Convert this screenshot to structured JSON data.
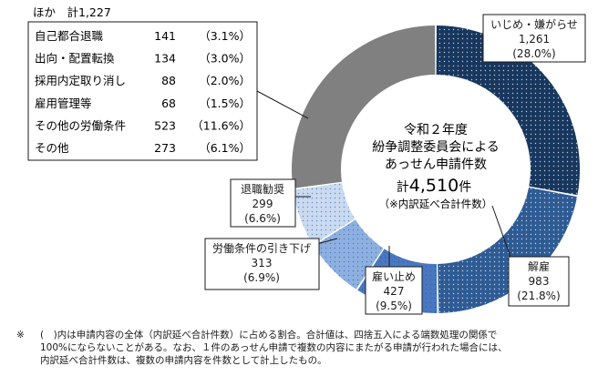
{
  "chart_data": {
    "type": "pie",
    "variant": "donut",
    "center_text": {
      "line1": "令和２年度",
      "line2": "紛争調整委員会による",
      "line3": "あっせん申請件数",
      "total_prefix": "計",
      "total_value": "4,510",
      "total_suffix": "件",
      "note": "（※内訳延べ合計件数）"
    },
    "slices": [
      {
        "name": "いじめ・嫌がらせ",
        "value": 1261,
        "value_label": "1,261",
        "percent_label": "(28.0%)",
        "color": "#17375e",
        "pattern": "dots-white"
      },
      {
        "name": "解雇",
        "value": 983,
        "value_label": "983",
        "percent_label": "(21.8%)",
        "color": "#2e5b94",
        "pattern": "dots-white"
      },
      {
        "name": "雇い止め",
        "value": 427,
        "value_label": "427",
        "percent_label": "(9.5%)",
        "color": "#4a78c0",
        "pattern": "dots-blue"
      },
      {
        "name": "労働条件の引き下げ",
        "value": 313,
        "value_label": "313",
        "percent_label": "(6.9%)",
        "color": "#8eb0e0",
        "pattern": "dots-blue"
      },
      {
        "name": "退職勧奨",
        "value": 299,
        "value_label": "299",
        "percent_label": "(6.6%)",
        "color": "#c9daf1",
        "pattern": "dots-blue"
      },
      {
        "name": "ほか",
        "value": 1227,
        "value_label": "1,227",
        "percent_label": "",
        "color": "#808080",
        "pattern": "solid"
      }
    ],
    "other_breakdown": {
      "title": "ほか　計1,227",
      "rows": [
        {
          "name": "自己都合退職",
          "value": "141",
          "percent": "（3.1%）"
        },
        {
          "name": "出向・配置転換",
          "value": "134",
          "percent": "（3.0%）"
        },
        {
          "name": "採用内定取り消し",
          "value": "88",
          "percent": "（2.0%）"
        },
        {
          "name": "雇用管理等",
          "value": "68",
          "percent": "（1.5%）"
        },
        {
          "name": "その他の労働条件",
          "value": "523",
          "percent": "（11.6%）"
        },
        {
          "name": "その他",
          "value": "273",
          "percent": "（6.1%）"
        }
      ]
    }
  },
  "footnote": {
    "mark": "※",
    "text": "(　)内は申請内容の全体（内訳延べ合計件数）に占める割合。合計値は、四捨五入による端数処理の関係で\n100%にならないことがある。なお、１件のあっせん申請で複数の内容にまたがる申請が行われた場合には、\n内訳延べ合計件数は、複数の申請内容を件数として計上したもの。"
  }
}
